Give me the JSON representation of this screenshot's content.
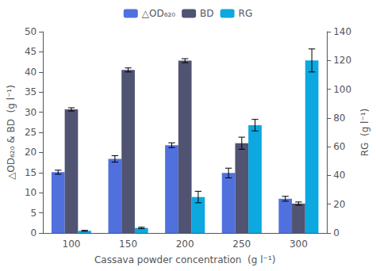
{
  "chart_data": {
    "type": "bar",
    "categories": [
      "100",
      "150",
      "200",
      "250",
      "300"
    ],
    "xlabel": "Cassava powder concentration  (g l⁻¹)",
    "ylabel": "△OD₆₂₀ & BD  (g l⁻¹)",
    "y2label": "RG  (g l⁻¹)",
    "series": [
      {
        "name": "△OD₆₂₀",
        "axis": "y",
        "values": [
          15.1,
          18.4,
          21.8,
          14.9,
          8.5
        ],
        "errors": [
          0.5,
          0.8,
          0.6,
          1.2,
          0.6
        ]
      },
      {
        "name": "BD",
        "axis": "y",
        "values": [
          30.7,
          40.5,
          42.8,
          22.3,
          7.3
        ],
        "errors": [
          0.4,
          0.5,
          0.5,
          1.5,
          0.4
        ]
      },
      {
        "name": "RG",
        "axis": "y2",
        "values": [
          1.5,
          3.5,
          25.0,
          75.0,
          120.0
        ],
        "errors": [
          0.3,
          0.5,
          4.0,
          4.0,
          8.0
        ]
      }
    ],
    "ylim": [
      0,
      50
    ],
    "yticks": [
      0,
      5,
      10,
      15,
      20,
      25,
      30,
      35,
      40,
      45,
      50
    ],
    "y2lim": [
      0,
      140
    ],
    "y2ticks": [
      0,
      20,
      40,
      60,
      80,
      100,
      120,
      140
    ],
    "legend": "top",
    "grid": false
  }
}
